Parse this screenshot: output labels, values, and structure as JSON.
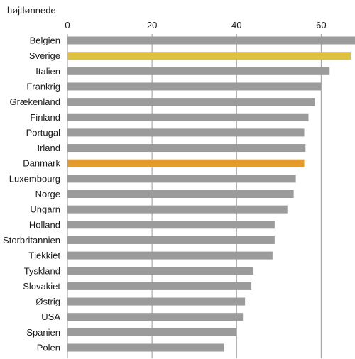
{
  "chart_data": {
    "type": "bar",
    "orientation": "horizontal",
    "ylabel": "højtlønnede",
    "x_ticks": [
      "0",
      "20",
      "40",
      "60"
    ],
    "xlim": [
      0,
      68
    ],
    "grid": true,
    "categories": [
      "Belgien",
      "Sverige",
      "Italien",
      "Frankrig",
      "Grækenland",
      "Finland",
      "Portugal",
      "Irland",
      "Danmark",
      "Luxembourg",
      "Norge",
      "Ungarn",
      "Holland",
      "Storbritannien",
      "Tjekkiet",
      "Tyskland",
      "Slovakiet",
      "Østrig",
      "USA",
      "Spanien",
      "Polen"
    ],
    "values": [
      68,
      67,
      62,
      60,
      58.5,
      57,
      56,
      56.3,
      56,
      54,
      53.5,
      52,
      49,
      49,
      48.5,
      44,
      43.5,
      42,
      41.5,
      40,
      37
    ],
    "colors": [
      "#9b9b9b",
      "#e0c040",
      "#9b9b9b",
      "#9b9b9b",
      "#9b9b9b",
      "#9b9b9b",
      "#9b9b9b",
      "#9b9b9b",
      "#e39b2a",
      "#9b9b9b",
      "#9b9b9b",
      "#9b9b9b",
      "#9b9b9b",
      "#9b9b9b",
      "#9b9b9b",
      "#9b9b9b",
      "#9b9b9b",
      "#9b9b9b",
      "#9b9b9b",
      "#9b9b9b",
      "#9b9b9b"
    ]
  }
}
